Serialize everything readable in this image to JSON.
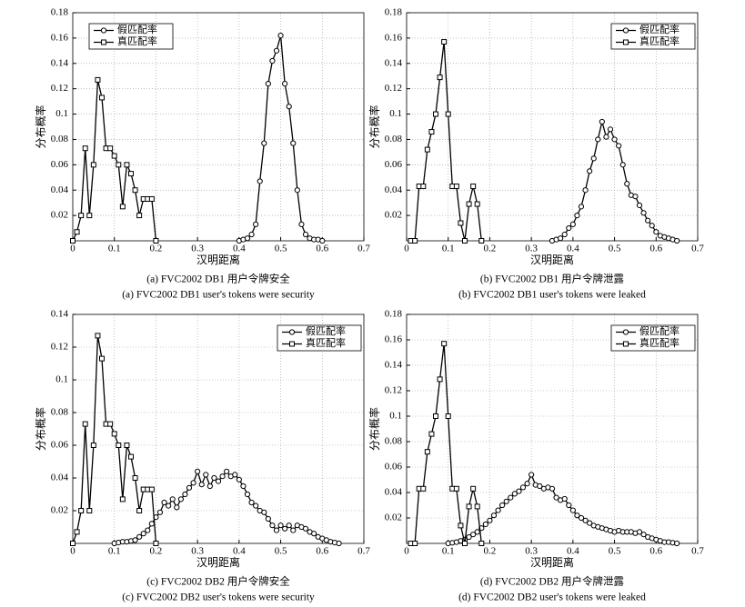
{
  "chart_data": [
    {
      "type": "line",
      "ylabel": "分布概率",
      "xlabel": "汉明距离",
      "caption": [
        "(a) FVC2002 DB1 用户令牌安全",
        "(a) FVC2002 DB1 user's tokens were security"
      ],
      "xlim": [
        0,
        0.7
      ],
      "ylim": [
        0,
        0.18
      ],
      "xticks": [
        0,
        0.1,
        0.2,
        0.3,
        0.4,
        0.5,
        0.6,
        0.7
      ],
      "yticks": [
        0.02,
        0.04,
        0.06,
        0.08,
        0.1,
        0.12,
        0.14,
        0.16,
        0.18
      ],
      "grid": true,
      "legend": "upper left",
      "series": [
        {
          "name": "假匹配率",
          "color": "#000000",
          "marker": "circle",
          "x": [
            0.4,
            0.41,
            0.42,
            0.43,
            0.44,
            0.45,
            0.46,
            0.47,
            0.48,
            0.49,
            0.5,
            0.51,
            0.52,
            0.53,
            0.54,
            0.55,
            0.56,
            0.57,
            0.58,
            0.59,
            0.6
          ],
          "values": [
            0,
            0.001,
            0.002,
            0.005,
            0.013,
            0.047,
            0.077,
            0.124,
            0.142,
            0.15,
            0.162,
            0.124,
            0.106,
            0.077,
            0.04,
            0.013,
            0.005,
            0.002,
            0.001,
            0.001,
            0
          ]
        },
        {
          "name": "真匹配率",
          "color": "#000000",
          "marker": "square",
          "x": [
            0,
            0.01,
            0.02,
            0.03,
            0.04,
            0.05,
            0.06,
            0.07,
            0.08,
            0.09,
            0.1,
            0.11,
            0.12,
            0.13,
            0.14,
            0.15,
            0.16,
            0.17,
            0.18,
            0.19,
            0.2
          ],
          "values": [
            0,
            0.007,
            0.02,
            0.073,
            0.02,
            0.06,
            0.127,
            0.113,
            0.073,
            0.073,
            0.067,
            0.06,
            0.027,
            0.06,
            0.053,
            0.04,
            0.02,
            0.033,
            0.033,
            0.033,
            0
          ]
        }
      ]
    },
    {
      "type": "line",
      "ylabel": "分布概率",
      "xlabel": "汉明距离",
      "caption": [
        "(b) FVC2002 DB1 用户令牌泄露",
        "(b) FVC2002 DB1 user's tokens were leaked"
      ],
      "xlim": [
        0,
        0.7
      ],
      "ylim": [
        0,
        0.18
      ],
      "xticks": [
        0,
        0.1,
        0.2,
        0.3,
        0.4,
        0.5,
        0.6,
        0.7
      ],
      "yticks": [
        0.02,
        0.04,
        0.06,
        0.08,
        0.1,
        0.12,
        0.14,
        0.16,
        0.18
      ],
      "grid": true,
      "legend": "upper right",
      "series": [
        {
          "name": "假匹配率",
          "color": "#000000",
          "marker": "circle",
          "x": [
            0.35,
            0.36,
            0.37,
            0.38,
            0.39,
            0.4,
            0.41,
            0.42,
            0.43,
            0.44,
            0.45,
            0.46,
            0.47,
            0.48,
            0.49,
            0.5,
            0.51,
            0.52,
            0.53,
            0.54,
            0.55,
            0.56,
            0.57,
            0.58,
            0.59,
            0.6,
            0.61,
            0.62,
            0.63,
            0.64,
            0.65
          ],
          "values": [
            0,
            0.001,
            0.002,
            0.005,
            0.01,
            0.013,
            0.02,
            0.027,
            0.04,
            0.055,
            0.065,
            0.08,
            0.094,
            0.082,
            0.088,
            0.08,
            0.075,
            0.06,
            0.045,
            0.036,
            0.035,
            0.028,
            0.022,
            0.016,
            0.012,
            0.007,
            0.004,
            0.003,
            0.002,
            0.001,
            0
          ]
        },
        {
          "name": "真匹配率",
          "color": "#000000",
          "marker": "square",
          "x": [
            0.01,
            0.02,
            0.03,
            0.04,
            0.05,
            0.06,
            0.07,
            0.08,
            0.09,
            0.1,
            0.11,
            0.12,
            0.13,
            0.14,
            0.15,
            0.16,
            0.17,
            0.18
          ],
          "values": [
            0,
            0,
            0.043,
            0.043,
            0.072,
            0.086,
            0.1,
            0.129,
            0.157,
            0.1,
            0.043,
            0.043,
            0.014,
            0,
            0.029,
            0.043,
            0.029,
            0
          ]
        }
      ]
    },
    {
      "type": "line",
      "ylabel": "分布概率",
      "xlabel": "汉明距离",
      "caption": [
        "(c) FVC2002 DB2 用户令牌安全",
        "(c) FVC2002 DB2 user's tokens were security"
      ],
      "xlim": [
        0,
        0.7
      ],
      "ylim": [
        0,
        0.14
      ],
      "xticks": [
        0,
        0.1,
        0.2,
        0.3,
        0.4,
        0.5,
        0.6,
        0.7
      ],
      "yticks": [
        0.02,
        0.04,
        0.06,
        0.08,
        0.1,
        0.12,
        0.14
      ],
      "grid": true,
      "legend": "upper right",
      "series": [
        {
          "name": "假匹配率",
          "color": "#000000",
          "marker": "circle",
          "x": [
            0.1,
            0.11,
            0.12,
            0.13,
            0.14,
            0.15,
            0.16,
            0.17,
            0.18,
            0.19,
            0.2,
            0.21,
            0.22,
            0.23,
            0.24,
            0.25,
            0.26,
            0.27,
            0.28,
            0.29,
            0.3,
            0.31,
            0.32,
            0.33,
            0.34,
            0.35,
            0.36,
            0.37,
            0.38,
            0.39,
            0.4,
            0.41,
            0.42,
            0.43,
            0.44,
            0.45,
            0.46,
            0.47,
            0.48,
            0.49,
            0.5,
            0.51,
            0.52,
            0.53,
            0.54,
            0.55,
            0.56,
            0.57,
            0.58,
            0.59,
            0.6,
            0.61,
            0.62,
            0.63,
            0.64
          ],
          "values": [
            0,
            0.0005,
            0.001,
            0.001,
            0.0015,
            0.002,
            0.004,
            0.006,
            0.008,
            0.012,
            0.016,
            0.019,
            0.025,
            0.023,
            0.027,
            0.022,
            0.027,
            0.03,
            0.034,
            0.037,
            0.044,
            0.036,
            0.042,
            0.035,
            0.04,
            0.038,
            0.041,
            0.044,
            0.041,
            0.042,
            0.039,
            0.035,
            0.03,
            0.025,
            0.023,
            0.02,
            0.019,
            0.015,
            0.011,
            0.008,
            0.011,
            0.009,
            0.011,
            0.008,
            0.011,
            0.01,
            0.009,
            0.007,
            0.006,
            0.004,
            0.003,
            0.002,
            0.001,
            0.0005,
            0
          ]
        },
        {
          "name": "真匹配率",
          "color": "#000000",
          "marker": "square",
          "x": [
            0,
            0.01,
            0.02,
            0.03,
            0.04,
            0.05,
            0.06,
            0.07,
            0.08,
            0.09,
            0.1,
            0.11,
            0.12,
            0.13,
            0.14,
            0.15,
            0.16,
            0.17,
            0.18,
            0.19,
            0.2
          ],
          "values": [
            0,
            0.007,
            0.02,
            0.073,
            0.02,
            0.06,
            0.127,
            0.113,
            0.073,
            0.073,
            0.067,
            0.06,
            0.027,
            0.06,
            0.053,
            0.04,
            0.02,
            0.033,
            0.033,
            0.033,
            0
          ]
        }
      ]
    },
    {
      "type": "line",
      "ylabel": "分布概率",
      "xlabel": "汉明距离",
      "caption": [
        "(d) FVC2002 DB2 用户令牌泄露",
        "(d) FVC2002 DB2 user's tokens were leaked"
      ],
      "xlim": [
        0,
        0.7
      ],
      "ylim": [
        0,
        0.18
      ],
      "xticks": [
        0,
        0.1,
        0.2,
        0.3,
        0.4,
        0.5,
        0.6,
        0.7
      ],
      "yticks": [
        0.02,
        0.04,
        0.06,
        0.08,
        0.1,
        0.12,
        0.14,
        0.16,
        0.18
      ],
      "grid": true,
      "legend": "upper right",
      "series": [
        {
          "name": "假匹配率",
          "color": "#000000",
          "marker": "circle",
          "x": [
            0.1,
            0.11,
            0.12,
            0.13,
            0.14,
            0.15,
            0.16,
            0.17,
            0.18,
            0.19,
            0.2,
            0.21,
            0.22,
            0.23,
            0.24,
            0.25,
            0.26,
            0.27,
            0.28,
            0.29,
            0.3,
            0.31,
            0.32,
            0.33,
            0.34,
            0.35,
            0.36,
            0.37,
            0.38,
            0.39,
            0.4,
            0.41,
            0.42,
            0.43,
            0.44,
            0.45,
            0.46,
            0.47,
            0.48,
            0.49,
            0.5,
            0.51,
            0.52,
            0.53,
            0.54,
            0.55,
            0.56,
            0.57,
            0.58,
            0.59,
            0.6,
            0.61,
            0.62,
            0.63,
            0.64,
            0.65
          ],
          "values": [
            0,
            0.0005,
            0.001,
            0.002,
            0.003,
            0.005,
            0.007,
            0.009,
            0.012,
            0.015,
            0.018,
            0.022,
            0.026,
            0.03,
            0.033,
            0.036,
            0.039,
            0.041,
            0.044,
            0.047,
            0.054,
            0.046,
            0.045,
            0.043,
            0.044,
            0.043,
            0.036,
            0.034,
            0.035,
            0.03,
            0.026,
            0.022,
            0.02,
            0.018,
            0.016,
            0.014,
            0.013,
            0.012,
            0.011,
            0.01,
            0.009,
            0.01,
            0.009,
            0.009,
            0.009,
            0.008,
            0.009,
            0.007,
            0.005,
            0.004,
            0.003,
            0.002,
            0.001,
            0.001,
            0.0005,
            0
          ]
        },
        {
          "name": "真匹配率",
          "color": "#000000",
          "marker": "square",
          "x": [
            0.01,
            0.02,
            0.03,
            0.04,
            0.05,
            0.06,
            0.07,
            0.08,
            0.09,
            0.1,
            0.11,
            0.12,
            0.13,
            0.14,
            0.15,
            0.16,
            0.17,
            0.18
          ],
          "values": [
            0,
            0,
            0.043,
            0.043,
            0.072,
            0.086,
            0.1,
            0.129,
            0.157,
            0.1,
            0.043,
            0.043,
            0.014,
            0,
            0.029,
            0.043,
            0.029,
            0
          ]
        }
      ]
    }
  ]
}
